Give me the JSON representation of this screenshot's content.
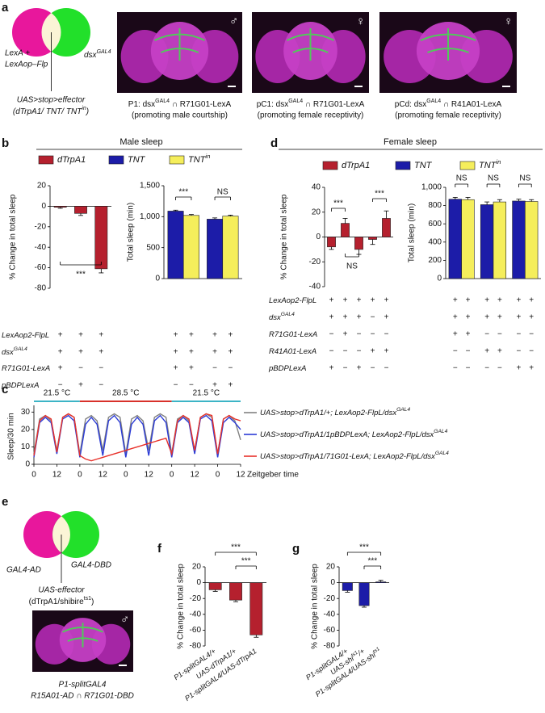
{
  "panel_labels": [
    "a",
    "b",
    "c",
    "d",
    "e",
    "f",
    "g"
  ],
  "panel_a": {
    "venn_left": [
      "LexA +",
      "LexAop–Flp"
    ],
    "venn_right": [
      "dsx",
      {
        "sup": "GAL4"
      }
    ],
    "effector": "UAS>stop>effector",
    "effector_detail": [
      "(dTrpA1/ TNT/ TNT",
      {
        "sup": "in"
      },
      ")"
    ],
    "images": [
      {
        "sex": "♂",
        "caption": [
          "P1: dsx",
          {
            "sup": "GAL4"
          },
          " ∩ R71G01-LexA"
        ],
        "note": "(promoting male courtship)"
      },
      {
        "sex": "♀",
        "caption": [
          "pC1: dsx",
          {
            "sup": "GAL4"
          },
          " ∩ R71G01-LexA"
        ],
        "note": "(promoting female receptivity)"
      },
      {
        "sex": "♀",
        "caption": [
          "pCd: dsx",
          {
            "sup": "GAL4"
          },
          " ∩ R41A01-LexA"
        ],
        "note": "(promoting female receptivity)"
      }
    ]
  },
  "panel_b": {
    "title": "Male sleep",
    "genotype_labels": [
      [
        "LexAop2-FlpL"
      ],
      [
        "dsx",
        {
          "sup": "GAL4"
        }
      ],
      [
        "R71G01-LexA"
      ],
      [
        "pBDPLexA"
      ]
    ]
  },
  "panel_d": {
    "title": "Female sleep",
    "genotype_labels": [
      [
        "LexAop2-FlpL"
      ],
      [
        "dsx",
        {
          "sup": "GAL4"
        }
      ],
      [
        "R71G01-LexA"
      ],
      [
        "R41A01-LexA"
      ],
      [
        "pBDPLexA"
      ]
    ]
  },
  "panel_e": {
    "venn_left": "GAL4-AD",
    "venn_right": "GAL4-DBD",
    "effector": "UAS-effector",
    "effector_detail": [
      "(dTrpA1/shibire",
      {
        "sup": "ts1"
      },
      ")"
    ],
    "image_sex": "♂",
    "caption": "P1-splitGAL4",
    "caption_detail": "R15A01-AD ∩ R71G01-DBD"
  },
  "chart_data": [
    {
      "type": "bar",
      "ylabel": "% Change in total sleep",
      "ylim": [
        -80,
        20
      ],
      "yticks": [
        -80,
        -60,
        -40,
        -20,
        0,
        20
      ],
      "categories": [
        null,
        null,
        null
      ],
      "series": [
        {
          "name": "dTrpA1",
          "color": "#b5202e",
          "values": [
            -1,
            -7,
            -61
          ],
          "errors": [
            1,
            2,
            4
          ]
        }
      ],
      "annotations": [
        "***"
      ],
      "genotype_marks": [
        [
          "+",
          "+",
          "+"
        ],
        [
          "+",
          "+",
          "+"
        ],
        [
          "+",
          "−",
          "−"
        ],
        [
          "−",
          "+",
          "−"
        ]
      ]
    },
    {
      "type": "bar",
      "ylabel": "Total sleep (min)",
      "ylim": [
        0,
        1500
      ],
      "yticks": [
        0,
        500,
        {
          "value": 1000,
          "label": "1,000"
        },
        {
          "value": 1500,
          "label": "1,500"
        }
      ],
      "categories": [
        null,
        null
      ],
      "series": [
        {
          "name": "TNT",
          "color": "#1c1ca8",
          "values": [
            1090,
            960
          ],
          "errors": [
            15,
            20
          ]
        },
        {
          "name": [
            "TNT",
            {
              "sup": "in"
            }
          ],
          "color": "#f5ee5b",
          "values": [
            1020,
            1010
          ],
          "errors": [
            15,
            15
          ]
        }
      ],
      "annotations": [
        "***",
        "NS"
      ],
      "genotype_marks": [
        [
          "+",
          "+",
          "+",
          "+"
        ],
        [
          "+",
          "+",
          "+",
          "+"
        ],
        [
          "+",
          "+",
          "−",
          "−"
        ],
        [
          "−",
          "−",
          "+",
          "+"
        ]
      ]
    },
    {
      "type": "line",
      "ylabel": "Sleep/30 min",
      "xlabel": "Zeitgeber time",
      "xlim": [
        0,
        108
      ],
      "ylim": [
        0,
        32
      ],
      "yticks": [
        0,
        10,
        20,
        30
      ],
      "xticks": [
        0,
        12,
        {
          "value": 24,
          "label": "0"
        },
        {
          "value": 36,
          "label": "12"
        },
        {
          "value": 48,
          "label": "0"
        },
        {
          "value": 60,
          "label": "12"
        },
        {
          "value": 72,
          "label": "0"
        },
        {
          "value": 84,
          "label": "12"
        },
        {
          "value": 96,
          "label": "0"
        },
        {
          "value": 108,
          "label": "12"
        }
      ],
      "temperature_periods": [
        {
          "label": "21.5 °C",
          "range": [
            0,
            24
          ],
          "color": "#3cb4c6"
        },
        {
          "label": "28.5 °C",
          "range": [
            24,
            72
          ],
          "color": "#d8312b"
        },
        {
          "label": "21.5 °C",
          "range": [
            72,
            108
          ],
          "color": "#3cb4c6"
        }
      ],
      "x": [
        0,
        3,
        6,
        9,
        12,
        15,
        18,
        21,
        24,
        27,
        30,
        33,
        36,
        39,
        42,
        45,
        48,
        51,
        54,
        57,
        60,
        63,
        66,
        69,
        72,
        75,
        78,
        81,
        84,
        87,
        90,
        93,
        96,
        99,
        102,
        105,
        108
      ],
      "series": [
        {
          "name": [
            "UAS>stop>dTrpA1/+; LexAop2-FlpL/dsx",
            {
              "sup": "GAL4"
            }
          ],
          "color": "#808080",
          "values": [
            6,
            26,
            28,
            25,
            8,
            27,
            29,
            27,
            6,
            26,
            28,
            25,
            8,
            27,
            29,
            27,
            6,
            26,
            28,
            25,
            8,
            27,
            29,
            27,
            6,
            26,
            28,
            25,
            8,
            27,
            29,
            27,
            6,
            26,
            28,
            25,
            14
          ]
        },
        {
          "name": [
            "UAS>stop>dTrpA1/1pBDPLexA; LexAop2-FlpL/dsx",
            {
              "sup": "GAL4"
            }
          ],
          "color": "#2b3bd6",
          "values": [
            4,
            24,
            27,
            24,
            6,
            26,
            28,
            25,
            4,
            23,
            27,
            23,
            5,
            25,
            28,
            24,
            4,
            23,
            27,
            23,
            5,
            25,
            28,
            24,
            4,
            24,
            27,
            24,
            6,
            26,
            28,
            25,
            4,
            24,
            27,
            24,
            20
          ]
        },
        {
          "name": [
            "UAS>stop>dTrpA1/71G01-LexA; LexAop2-FlpL/dsx",
            {
              "sup": "GAL4"
            }
          ],
          "color": "#e8312a",
          "values": [
            5,
            25,
            28,
            26,
            7,
            27,
            29,
            27,
            5,
            3,
            2,
            3,
            4,
            5,
            6,
            7,
            8,
            9,
            10,
            11,
            12,
            13,
            14,
            15,
            6,
            25,
            28,
            26,
            8,
            27,
            29,
            28,
            6,
            26,
            28,
            26,
            25
          ]
        }
      ]
    },
    {
      "type": "bar",
      "ylabel": "% Change in total sleep",
      "ylim": [
        -40,
        40
      ],
      "yticks": [
        -40,
        -20,
        0,
        20,
        40
      ],
      "categories": [
        null,
        null,
        null,
        null,
        null
      ],
      "series": [
        {
          "name": "dTrpA1",
          "color": "#b5202e",
          "values": [
            -8,
            11,
            -10,
            -2,
            15
          ],
          "errors": [
            2,
            4,
            4,
            4,
            6
          ]
        }
      ],
      "annotations": [
        "***",
        "***",
        "NS"
      ],
      "genotype_marks": [
        [
          "+",
          "+",
          "+",
          "+",
          "+"
        ],
        [
          "+",
          "+",
          "+",
          "−",
          "+"
        ],
        [
          "−",
          "+",
          "−",
          "−",
          "−"
        ],
        [
          "−",
          "−",
          "−",
          "+",
          "+"
        ],
        [
          "+",
          "−",
          "+",
          "−",
          "−"
        ]
      ]
    },
    {
      "type": "bar",
      "ylabel": "Total sleep (min)",
      "ylim": [
        0,
        1000
      ],
      "yticks": [
        0,
        200,
        400,
        600,
        800,
        {
          "value": 1000,
          "label": "1,000"
        }
      ],
      "categories": [
        null,
        null,
        null
      ],
      "series": [
        {
          "name": "TNT",
          "color": "#1c1ca8",
          "values": [
            870,
            810,
            850
          ],
          "errors": [
            20,
            30,
            20
          ]
        },
        {
          "name": [
            "TNT",
            {
              "sup": "in"
            }
          ],
          "color": "#f5ee5b",
          "values": [
            865,
            840,
            845
          ],
          "errors": [
            25,
            25,
            20
          ]
        }
      ],
      "annotations": [
        "NS",
        "NS",
        "NS"
      ],
      "genotype_marks": [
        [
          "+",
          "+",
          "+",
          "+",
          "+",
          "+"
        ],
        [
          "+",
          "+",
          "+",
          "+",
          "+",
          "+"
        ],
        [
          "+",
          "+",
          "−",
          "−",
          "−",
          "−"
        ],
        [
          "−",
          "−",
          "+",
          "+",
          "−",
          "−"
        ],
        [
          "−",
          "−",
          "−",
          "−",
          "+",
          "+"
        ]
      ]
    },
    {
      "type": "bar",
      "ylabel": "% Change in total sleep",
      "ylim": [
        -80,
        20
      ],
      "yticks": [
        -80,
        -60,
        -40,
        -20,
        0,
        20
      ],
      "categories": [
        [
          "P1-splitGAL4/+"
        ],
        [
          "UAS-dTrpA1/+"
        ],
        [
          "P1-splitGAL4/UAS-dTrpA1"
        ]
      ],
      "series": [
        {
          "color": "#b5202e",
          "values": [
            -9,
            -22,
            -66
          ],
          "errors": [
            2,
            2,
            3
          ]
        }
      ],
      "annotations": [
        "***",
        "***"
      ]
    },
    {
      "type": "bar",
      "ylabel": "% Change in total sleep",
      "ylim": [
        -80,
        20
      ],
      "yticks": [
        -80,
        -60,
        -40,
        -20,
        0,
        20
      ],
      "categories": [
        [
          "P1-splitGAL4/+"
        ],
        [
          "UAS-shi",
          {
            "sup": "ts1"
          },
          "/+"
        ],
        [
          "P1-splitGAL4/UAS-shi",
          {
            "sup": "ts1"
          }
        ]
      ],
      "series": [
        {
          "color": "#1c1ca8",
          "values": [
            -10,
            -29,
            1
          ],
          "errors": [
            2,
            2,
            2
          ]
        }
      ],
      "annotations": [
        "***",
        "***"
      ]
    }
  ]
}
